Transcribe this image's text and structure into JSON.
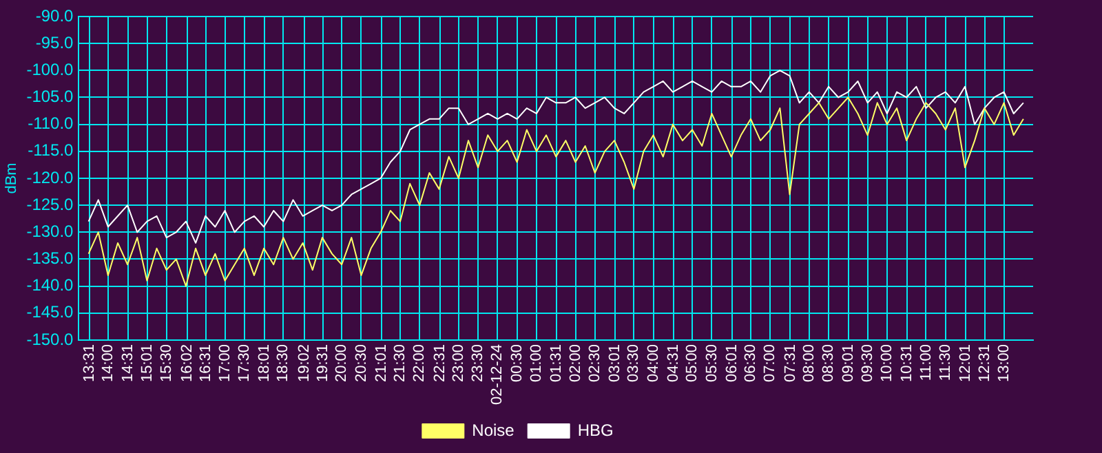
{
  "chart_data": {
    "type": "line",
    "ylabel": "dBm",
    "legend": "bottom",
    "grid": true,
    "marker": "none",
    "line_style": "solid",
    "xlim": [
      "--12-23T13:15",
      "--12-24T13:45"
    ],
    "ylim": [
      -150,
      -90
    ],
    "yticks": [
      {
        "value": -150,
        "label": "-150.0"
      },
      {
        "value": -145,
        "label": "-145.0"
      },
      {
        "value": -140,
        "label": "-140.0"
      },
      {
        "value": -135,
        "label": "-135.0"
      },
      {
        "value": -130,
        "label": "-130.0"
      },
      {
        "value": -125,
        "label": "-125.0"
      },
      {
        "value": -120,
        "label": "-120.0"
      },
      {
        "value": -115,
        "label": "-115.0"
      },
      {
        "value": -110,
        "label": "-110.0"
      },
      {
        "value": -105,
        "label": "-105.0"
      },
      {
        "value": -100,
        "label": "-100.0"
      },
      {
        "value": -95,
        "label": "-95.0"
      },
      {
        "value": -90,
        "label": "-90.0"
      }
    ],
    "xticks": [
      {
        "value": "--12-23T13:31",
        "label": "13:31"
      },
      {
        "value": "--12-23T14:00",
        "label": "14:00"
      },
      {
        "value": "--12-23T14:31",
        "label": "14:31"
      },
      {
        "value": "--12-23T15:01",
        "label": "15:01"
      },
      {
        "value": "--12-23T15:30",
        "label": "15:30"
      },
      {
        "value": "--12-23T16:02",
        "label": "16:02"
      },
      {
        "value": "--12-23T16:31",
        "label": "16:31"
      },
      {
        "value": "--12-23T17:00",
        "label": "17:00"
      },
      {
        "value": "--12-23T17:30",
        "label": "17:30"
      },
      {
        "value": "--12-23T18:01",
        "label": "18:01"
      },
      {
        "value": "--12-23T18:30",
        "label": "18:30"
      },
      {
        "value": "--12-23T19:02",
        "label": "19:02"
      },
      {
        "value": "--12-23T19:31",
        "label": "19:31"
      },
      {
        "value": "--12-23T20:00",
        "label": "20:00"
      },
      {
        "value": "--12-23T20:30",
        "label": "20:30"
      },
      {
        "value": "--12-23T21:01",
        "label": "21:01"
      },
      {
        "value": "--12-23T21:30",
        "label": "21:30"
      },
      {
        "value": "--12-23T22:00",
        "label": "22:00"
      },
      {
        "value": "--12-23T22:31",
        "label": "22:31"
      },
      {
        "value": "--12-23T23:00",
        "label": "23:00"
      },
      {
        "value": "--12-23T23:30",
        "label": "23:30"
      },
      {
        "value": "--12-24T00:00",
        "label": "02-12-24"
      },
      {
        "value": "--12-24T00:30",
        "label": "00:30"
      },
      {
        "value": "--12-24T01:00",
        "label": "01:00"
      },
      {
        "value": "--12-24T01:31",
        "label": "01:31"
      },
      {
        "value": "--12-24T02:00",
        "label": "02:00"
      },
      {
        "value": "--12-24T02:30",
        "label": "02:30"
      },
      {
        "value": "--12-24T03:01",
        "label": "03:01"
      },
      {
        "value": "--12-24T03:30",
        "label": "03:30"
      },
      {
        "value": "--12-24T04:00",
        "label": "04:00"
      },
      {
        "value": "--12-24T04:31",
        "label": "04:31"
      },
      {
        "value": "--12-24T05:00",
        "label": "05:00"
      },
      {
        "value": "--12-24T05:30",
        "label": "05:30"
      },
      {
        "value": "--12-24T06:01",
        "label": "06:01"
      },
      {
        "value": "--12-24T06:30",
        "label": "06:30"
      },
      {
        "value": "--12-24T07:00",
        "label": "07:00"
      },
      {
        "value": "--12-24T07:31",
        "label": "07:31"
      },
      {
        "value": "--12-24T08:00",
        "label": "08:00"
      },
      {
        "value": "--12-24T08:30",
        "label": "08:30"
      },
      {
        "value": "--12-24T09:01",
        "label": "09:01"
      },
      {
        "value": "--12-24T09:30",
        "label": "09:30"
      },
      {
        "value": "--12-24T10:00",
        "label": "10:00"
      },
      {
        "value": "--12-24T10:31",
        "label": "10:31"
      },
      {
        "value": "--12-24T11:00",
        "label": "11:00"
      },
      {
        "value": "--12-24T11:30",
        "label": "11:30"
      },
      {
        "value": "--12-24T12:01",
        "label": "12:01"
      },
      {
        "value": "--12-24T12:31",
        "label": "12:31"
      },
      {
        "value": "--12-24T13:00",
        "label": "13:00"
      }
    ],
    "x": [
      "--12-23T13:30",
      "--12-23T13:45",
      "--12-23T14:00",
      "--12-23T14:15",
      "--12-23T14:30",
      "--12-23T14:45",
      "--12-23T15:00",
      "--12-23T15:15",
      "--12-23T15:30",
      "--12-23T15:45",
      "--12-23T16:00",
      "--12-23T16:15",
      "--12-23T16:30",
      "--12-23T16:45",
      "--12-23T17:00",
      "--12-23T17:15",
      "--12-23T17:30",
      "--12-23T17:45",
      "--12-23T18:00",
      "--12-23T18:15",
      "--12-23T18:30",
      "--12-23T18:45",
      "--12-23T19:00",
      "--12-23T19:15",
      "--12-23T19:30",
      "--12-23T19:45",
      "--12-23T20:00",
      "--12-23T20:15",
      "--12-23T20:30",
      "--12-23T20:45",
      "--12-23T21:00",
      "--12-23T21:15",
      "--12-23T21:30",
      "--12-23T21:45",
      "--12-23T22:00",
      "--12-23T22:15",
      "--12-23T22:30",
      "--12-23T22:45",
      "--12-23T23:00",
      "--12-23T23:15",
      "--12-23T23:30",
      "--12-23T23:45",
      "--12-24T00:00",
      "--12-24T00:15",
      "--12-24T00:30",
      "--12-24T00:45",
      "--12-24T01:00",
      "--12-24T01:15",
      "--12-24T01:30",
      "--12-24T01:45",
      "--12-24T02:00",
      "--12-24T02:15",
      "--12-24T02:30",
      "--12-24T02:45",
      "--12-24T03:00",
      "--12-24T03:15",
      "--12-24T03:30",
      "--12-24T03:45",
      "--12-24T04:00",
      "--12-24T04:15",
      "--12-24T04:30",
      "--12-24T04:45",
      "--12-24T05:00",
      "--12-24T05:15",
      "--12-24T05:30",
      "--12-24T05:45",
      "--12-24T06:00",
      "--12-24T06:15",
      "--12-24T06:30",
      "--12-24T06:45",
      "--12-24T07:00",
      "--12-24T07:15",
      "--12-24T07:30",
      "--12-24T07:45",
      "--12-24T08:00",
      "--12-24T08:15",
      "--12-24T08:30",
      "--12-24T08:45",
      "--12-24T09:00",
      "--12-24T09:15",
      "--12-24T09:30",
      "--12-24T09:45",
      "--12-24T10:00",
      "--12-24T10:15",
      "--12-24T10:30",
      "--12-24T10:45",
      "--12-24T11:00",
      "--12-24T11:15",
      "--12-24T11:30",
      "--12-24T11:45",
      "--12-24T12:00",
      "--12-24T12:15",
      "--12-24T12:30",
      "--12-24T12:45",
      "--12-24T13:00",
      "--12-24T13:15",
      "--12-24T13:30"
    ],
    "series": [
      {
        "name": "Noise",
        "color": "#ffff66",
        "values": [
          -134,
          -130,
          -138,
          -132,
          -136,
          -131,
          -139,
          -133,
          -137,
          -135,
          -140,
          -133,
          -138,
          -134,
          -139,
          -136,
          -133,
          -138,
          -133,
          -136,
          -131,
          -135,
          -132,
          -137,
          -131,
          -134,
          -136,
          -131,
          -138,
          -133,
          -130,
          -126,
          -128,
          -121,
          -125,
          -119,
          -122,
          -116,
          -120,
          -113,
          -118,
          -112,
          -115,
          -113,
          -117,
          -111,
          -115,
          -112,
          -116,
          -113,
          -117,
          -114,
          -119,
          -115,
          -113,
          -117,
          -122,
          -115,
          -112,
          -116,
          -110,
          -113,
          -111,
          -114,
          -108,
          -112,
          -116,
          -112,
          -109,
          -113,
          -111,
          -107,
          -123,
          -110,
          -108,
          -106,
          -109,
          -107,
          -105,
          -108,
          -112,
          -106,
          -110,
          -107,
          -113,
          -109,
          -106,
          -108,
          -111,
          -107,
          -118,
          -113,
          -107,
          -110,
          -106,
          -112,
          -109
        ]
      },
      {
        "name": "HBG",
        "color": "#ffffff",
        "values": [
          -128,
          -124,
          -129,
          -127,
          -125,
          -130,
          -128,
          -127,
          -131,
          -130,
          -128,
          -132,
          -127,
          -129,
          -126,
          -130,
          -128,
          -127,
          -129,
          -126,
          -128,
          -124,
          -127,
          -126,
          -125,
          -126,
          -125,
          -123,
          -122,
          -121,
          -120,
          -117,
          -115,
          -111,
          -110,
          -109,
          -109,
          -107,
          -107,
          -110,
          -109,
          -108,
          -109,
          -108,
          -109,
          -107,
          -108,
          -105,
          -106,
          -106,
          -105,
          -107,
          -106,
          -105,
          -107,
          -108,
          -106,
          -104,
          -103,
          -102,
          -104,
          -103,
          -102,
          -103,
          -104,
          -102,
          -103,
          -103,
          -102,
          -104,
          -101,
          -100,
          -101,
          -106,
          -104,
          -106,
          -103,
          -105,
          -104,
          -102,
          -106,
          -104,
          -108,
          -104,
          -105,
          -103,
          -107,
          -105,
          -104,
          -106,
          -103,
          -110,
          -107,
          -105,
          -104,
          -108,
          -106
        ]
      }
    ]
  }
}
